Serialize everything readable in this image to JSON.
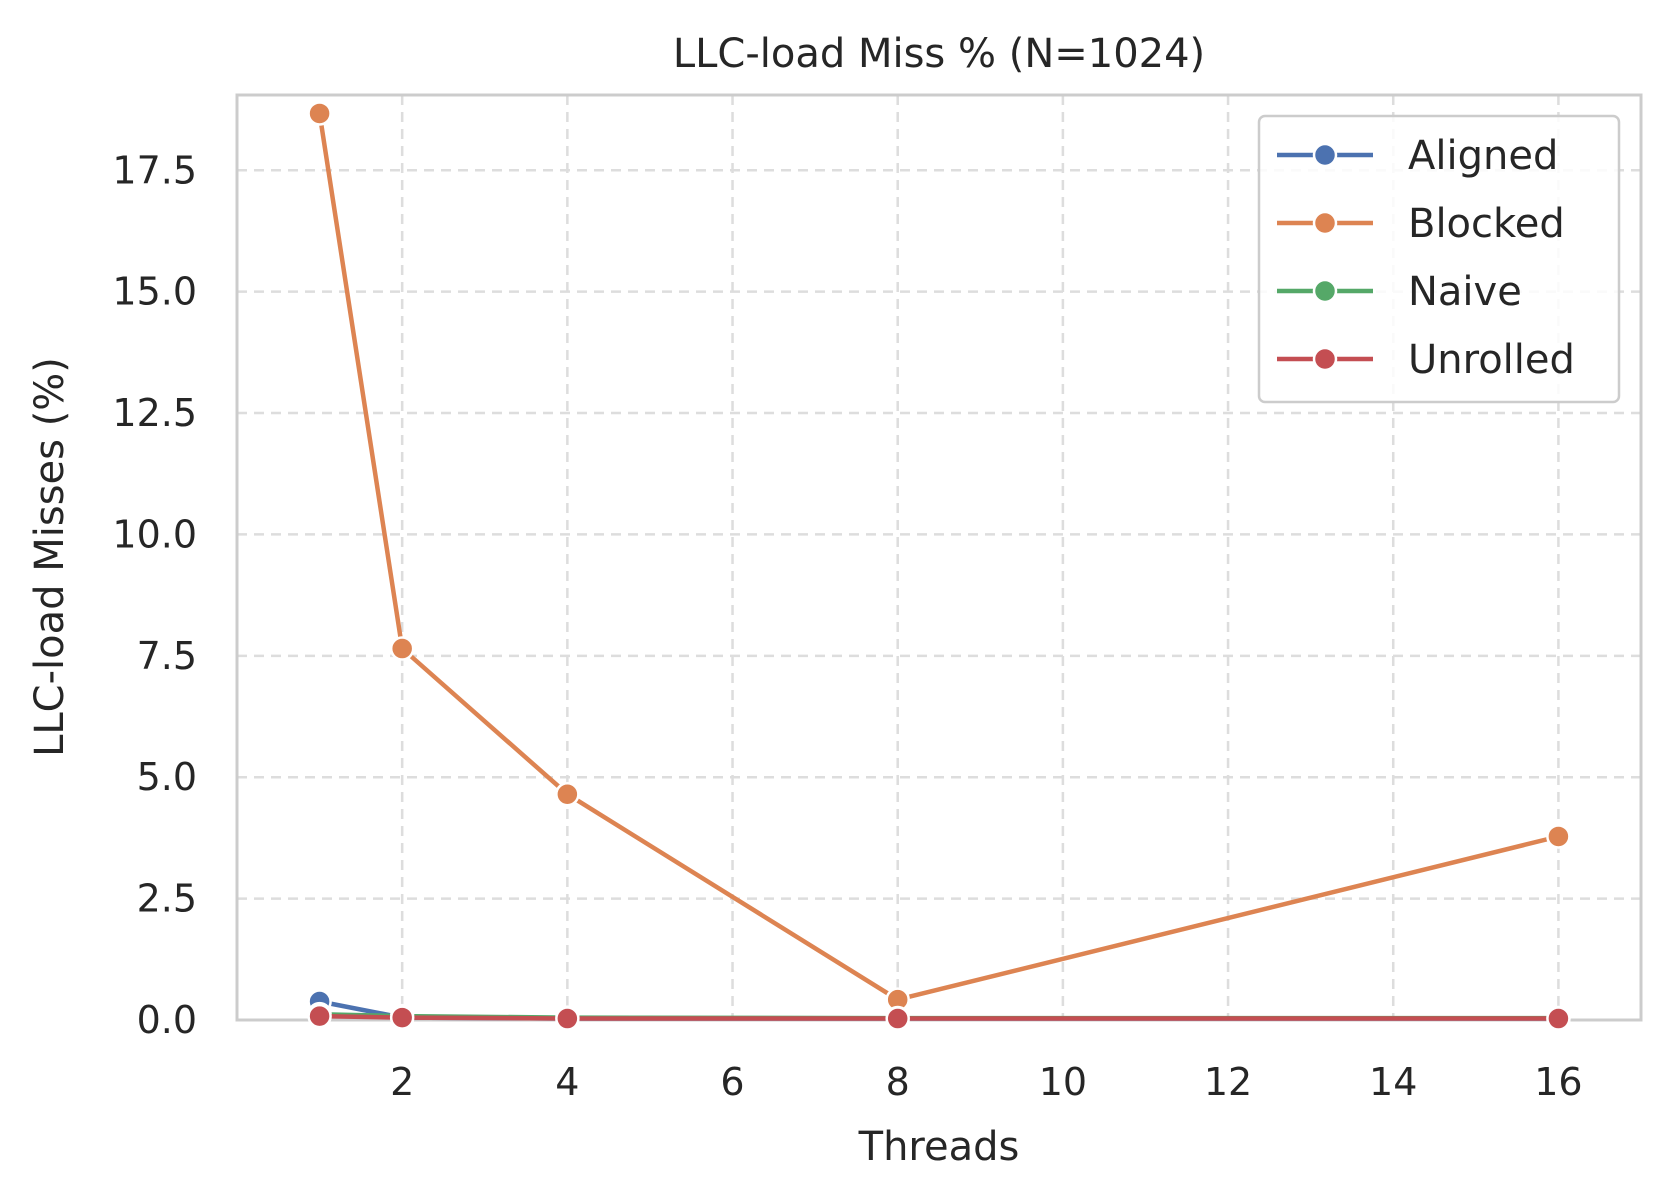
{
  "chart_data": {
    "type": "line",
    "title": "LLC-load Miss % (N=1024)",
    "xlabel": "Threads",
    "ylabel": "LLC-load Misses (%)",
    "x": [
      1,
      2,
      4,
      8,
      16
    ],
    "xlim": [
      0,
      17
    ],
    "ylim": [
      0,
      19.05
    ],
    "xticks": [
      2,
      4,
      6,
      8,
      10,
      12,
      14,
      16
    ],
    "xtick_labels": [
      "2",
      "4",
      "6",
      "8",
      "10",
      "12",
      "14",
      "16"
    ],
    "yticks": [
      0,
      2.5,
      5,
      7.5,
      10,
      12.5,
      15,
      17.5
    ],
    "ytick_labels": [
      "0.0",
      "2.5",
      "5.0",
      "7.5",
      "10.0",
      "12.5",
      "15.0",
      "17.5"
    ],
    "grid": true,
    "legend_position": "top-right",
    "series": [
      {
        "name": "Aligned",
        "color": "#4c72b0",
        "values": [
          0.38,
          0.05,
          0.03,
          0.03,
          0.03
        ]
      },
      {
        "name": "Blocked",
        "color": "#dd8452",
        "values": [
          18.67,
          7.65,
          4.65,
          0.42,
          3.78
        ]
      },
      {
        "name": "Naive",
        "color": "#55a868",
        "values": [
          0.12,
          0.08,
          0.05,
          0.04,
          0.04
        ]
      },
      {
        "name": "Unrolled",
        "color": "#c44e52",
        "values": [
          0.08,
          0.05,
          0.03,
          0.03,
          0.03
        ]
      }
    ]
  }
}
